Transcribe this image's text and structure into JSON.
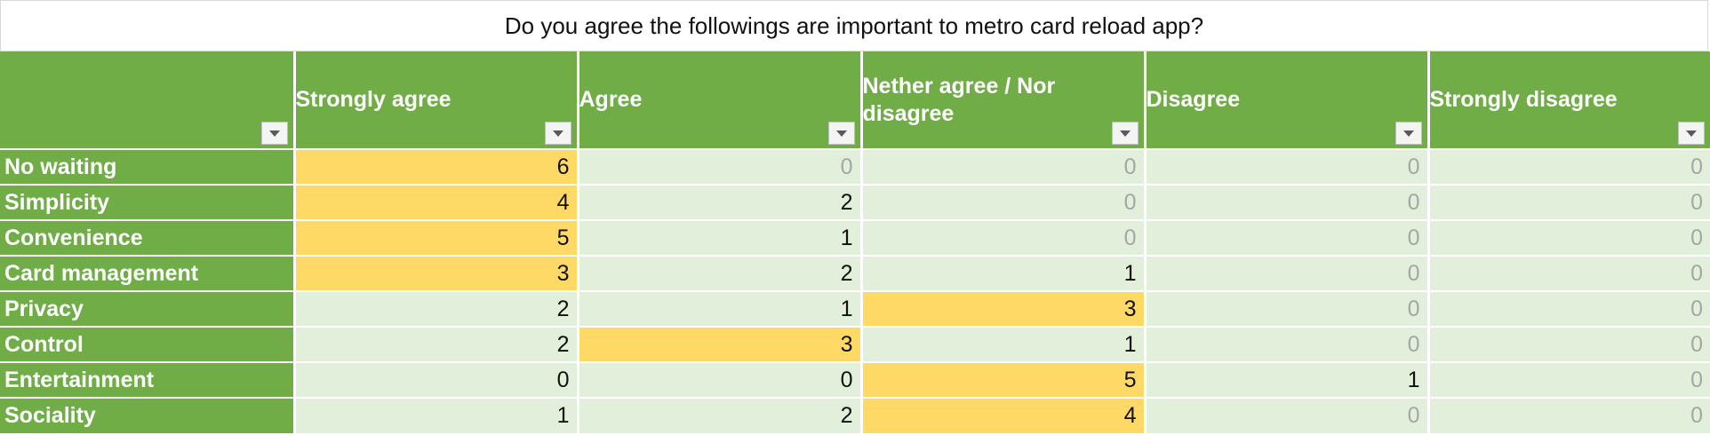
{
  "title": "Do you agree the followings are important to metro card reload app?",
  "columns": [
    "",
    "Strongly agree",
    "Agree",
    "Nether agree / Nor disagree",
    "Disagree",
    "Strongly disagree"
  ],
  "rows": [
    {
      "label": "No waiting",
      "values": [
        "6",
        "0",
        "0",
        "0",
        "0"
      ]
    },
    {
      "label": "Simplicity",
      "values": [
        "4",
        "2",
        "0",
        "0",
        "0"
      ]
    },
    {
      "label": "Convenience",
      "values": [
        "5",
        "1",
        "0",
        "0",
        "0"
      ]
    },
    {
      "label": "Card management",
      "values": [
        "3",
        "2",
        "1",
        "0",
        "0"
      ]
    },
    {
      "label": "Privacy",
      "values": [
        "2",
        "1",
        "3",
        "0",
        "0"
      ]
    },
    {
      "label": "Control",
      "values": [
        "2",
        "3",
        "1",
        "0",
        "0"
      ]
    },
    {
      "label": "Entertainment",
      "values": [
        "0",
        "0",
        "5",
        "1",
        "0"
      ]
    },
    {
      "label": "Sociality",
      "values": [
        "1",
        "2",
        "4",
        "0",
        "0"
      ]
    }
  ],
  "highlight": [
    [
      0,
      0
    ],
    [
      1,
      0
    ],
    [
      2,
      0
    ],
    [
      3,
      0
    ],
    [
      4,
      2
    ],
    [
      5,
      1
    ],
    [
      6,
      2
    ],
    [
      7,
      2
    ]
  ],
  "gray_zero": [
    [
      0,
      1
    ],
    [
      0,
      2
    ],
    [
      0,
      3
    ],
    [
      0,
      4
    ],
    [
      1,
      2
    ],
    [
      1,
      3
    ],
    [
      1,
      4
    ],
    [
      2,
      2
    ],
    [
      2,
      3
    ],
    [
      2,
      4
    ],
    [
      3,
      3
    ],
    [
      3,
      4
    ],
    [
      4,
      3
    ],
    [
      4,
      4
    ],
    [
      5,
      3
    ],
    [
      5,
      4
    ],
    [
      6,
      4
    ],
    [
      7,
      3
    ],
    [
      7,
      4
    ]
  ],
  "colors": {
    "header_green": "#70ad47",
    "cell_light": "#e2efda",
    "highlight": "#ffd966"
  }
}
